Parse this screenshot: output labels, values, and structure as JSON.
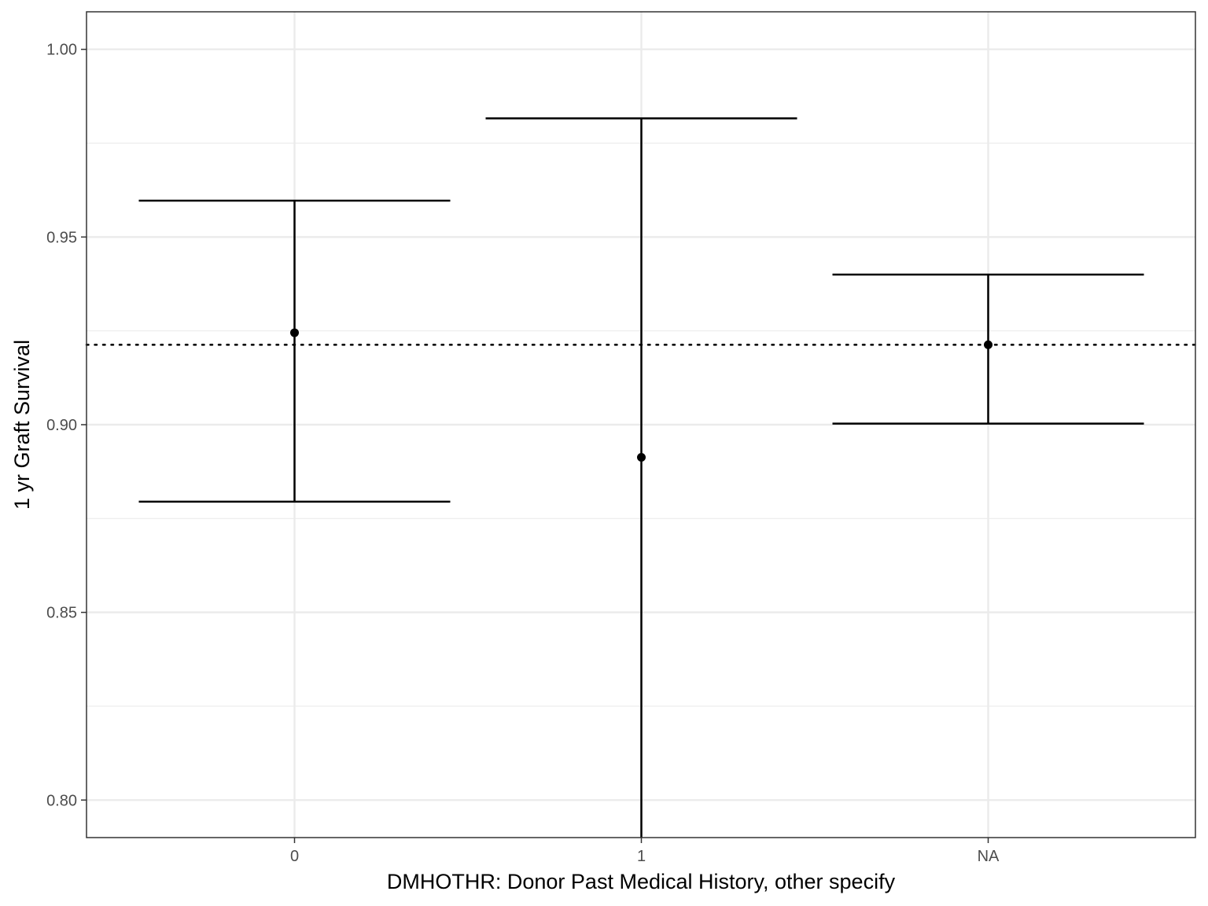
{
  "chart_data": {
    "type": "errorbar",
    "title": "",
    "xlabel": "DMHOTHR: Donor Past Medical History, other specify",
    "ylabel": "1 yr Graft Survival",
    "categories": [
      "0",
      "1",
      "NA"
    ],
    "series": [
      {
        "estimate": [
          0.9245,
          0.8913,
          0.9213
        ],
        "lower": [
          0.8795,
          0.79,
          0.9003
        ],
        "upper": [
          0.9597,
          0.9816,
          0.94
        ]
      }
    ],
    "reference_line": {
      "value": 0.9213,
      "style": "dotted"
    },
    "ylim": [
      0.79,
      1.01
    ],
    "yticks": [
      0.8,
      0.85,
      0.9,
      0.95,
      1.0
    ],
    "ytick_labels": [
      "0.80",
      "0.85",
      "0.90",
      "0.95",
      "1.00"
    ],
    "grid": true,
    "legend": "none",
    "colors": {
      "marks": "#000000",
      "grid": "#ebebeb",
      "panel_border": "#333333",
      "tick_text": "#4d4d4d"
    }
  }
}
